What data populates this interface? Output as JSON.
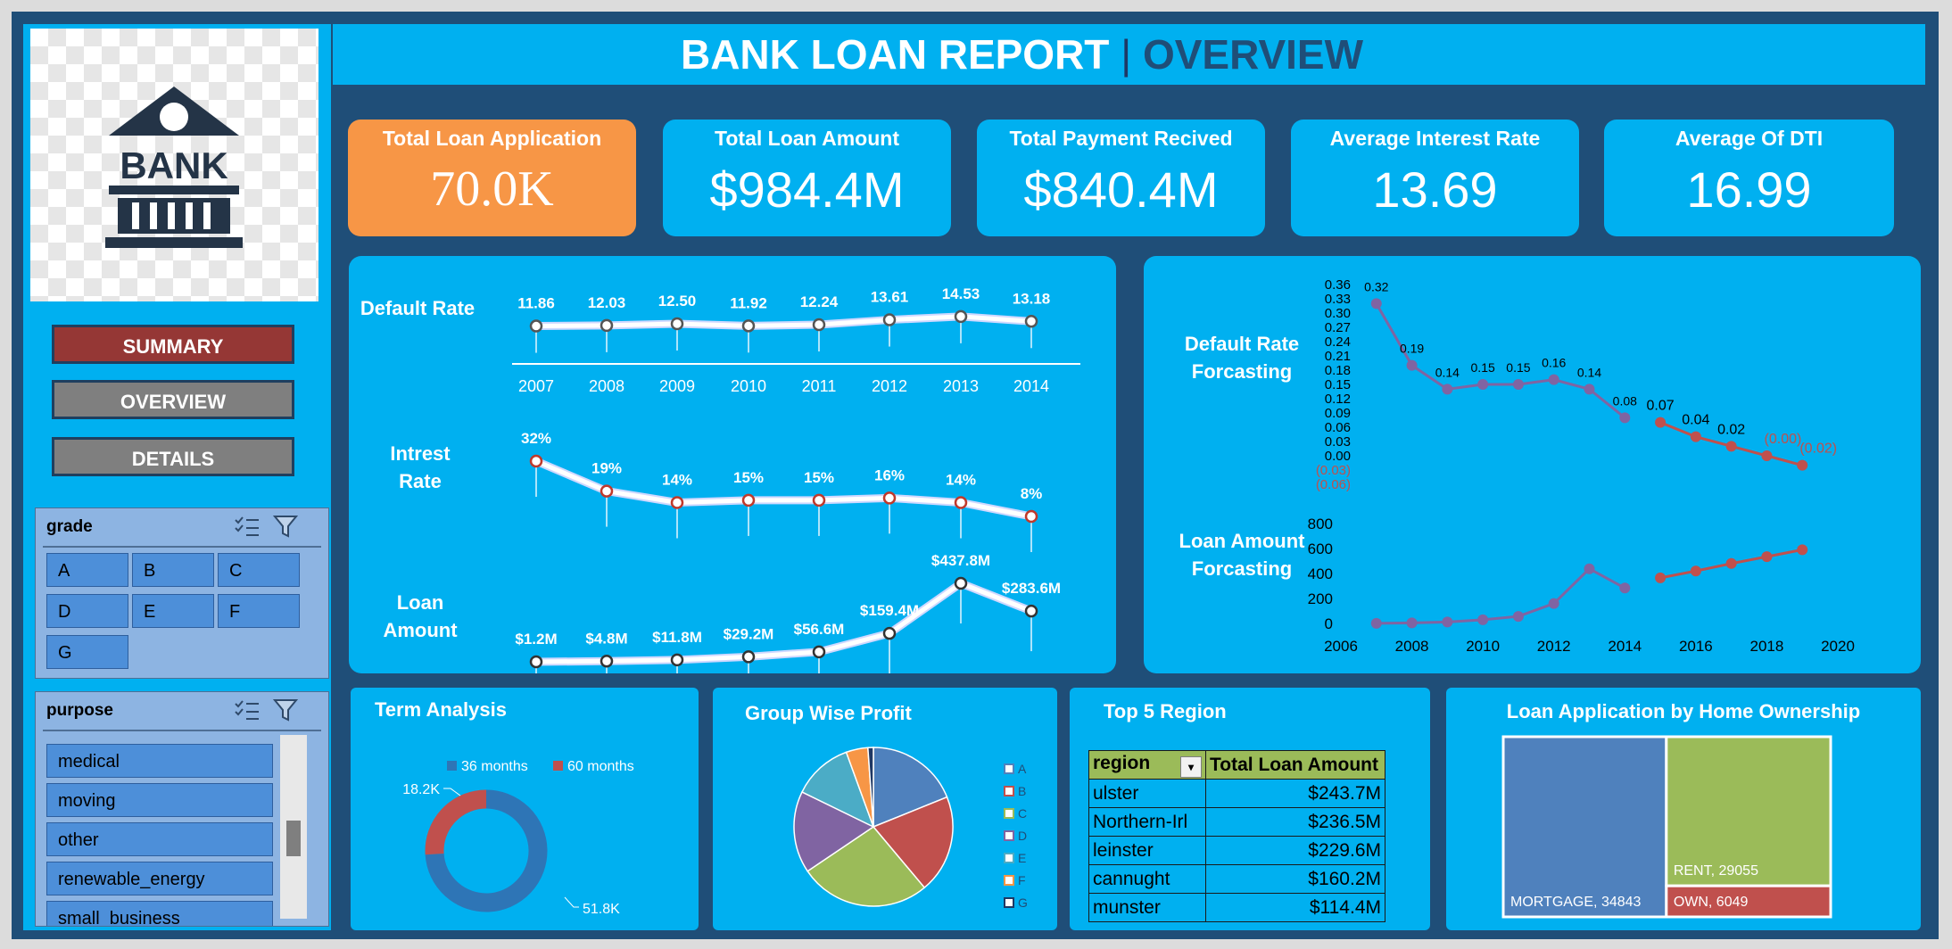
{
  "header": {
    "title_main": "BANK LOAN REPORT",
    "separator": "|",
    "title_sub": "OVERVIEW"
  },
  "logo": {
    "text": "BANK"
  },
  "nav": {
    "summary": "SUMMARY",
    "overview": "OVERVIEW",
    "details": "DETAILS"
  },
  "colors": {
    "background": "#1f4e78",
    "panel": "#00b0f0",
    "kpi_highlight": "#f79646",
    "summary_btn": "#953735",
    "nav_btn": "#7f7f7f",
    "title_sub": "#1f4e78",
    "forecast": "#c0504d",
    "history": "#8064a2"
  },
  "slicers": {
    "grade": {
      "title": "grade",
      "items": [
        "A",
        "B",
        "C",
        "D",
        "E",
        "F",
        "G"
      ]
    },
    "purpose": {
      "title": "purpose",
      "items": [
        "medical",
        "moving",
        "other",
        "renewable_energy",
        "small_business"
      ]
    }
  },
  "kpis": [
    {
      "title": "Total Loan Application",
      "value": "70.0K"
    },
    {
      "title": "Total Loan Amount",
      "value": "$984.4M"
    },
    {
      "title": "Total Payment Recived",
      "value": "$840.4M"
    },
    {
      "title": "Average Interest Rate",
      "value": "13.69"
    },
    {
      "title": "Average Of DTI",
      "value": "16.99"
    }
  ],
  "trend": {
    "labels": {
      "default_rate": "Default Rate",
      "interest_rate": "Intrest Rate",
      "loan_amount": "Loan Amount"
    }
  },
  "forecast_labels": {
    "default_rate": "Default Rate Forcasting",
    "loan_amount": "Loan Amount Forcasting"
  },
  "sections": {
    "term": "Term Analysis",
    "group": "Group Wise Profit",
    "region": "Top 5 Region",
    "home": "Loan Application by Home Ownership"
  },
  "region_table": {
    "headers": [
      "region",
      "Total Loan Amount"
    ],
    "rows": [
      [
        "ulster",
        "$243.7M"
      ],
      [
        "Northern-Irl",
        "$236.5M"
      ],
      [
        "leinster",
        "$229.6M"
      ],
      [
        "cannught",
        "$160.2M"
      ],
      [
        "munster",
        "$114.4M"
      ]
    ]
  },
  "chart_data": [
    {
      "type": "line",
      "title": "Default Rate",
      "x": [
        2007,
        2008,
        2009,
        2010,
        2011,
        2012,
        2013,
        2014
      ],
      "series": [
        {
          "values": [
            11.86,
            12.03,
            12.5,
            11.92,
            12.24,
            13.61,
            14.53,
            13.18
          ]
        }
      ],
      "data_labels": [
        "11.86",
        "12.03",
        "12.50",
        "11.92",
        "12.24",
        "13.61",
        "14.53",
        "13.18"
      ]
    },
    {
      "type": "line",
      "title": "Intrest Rate",
      "x": [
        2007,
        2008,
        2009,
        2010,
        2011,
        2012,
        2013,
        2014
      ],
      "series": [
        {
          "values": [
            32,
            19,
            14,
            15,
            15,
            16,
            14,
            8
          ]
        }
      ],
      "data_labels": [
        "32%",
        "19%",
        "14%",
        "15%",
        "15%",
        "16%",
        "14%",
        "8%"
      ]
    },
    {
      "type": "line",
      "title": "Loan Amount",
      "x": [
        2007,
        2008,
        2009,
        2010,
        2011,
        2012,
        2013,
        2014
      ],
      "series": [
        {
          "values": [
            1.2,
            4.8,
            11.8,
            29.2,
            56.6,
            159.4,
            437.8,
            283.6
          ]
        }
      ],
      "data_labels": [
        "$1.2M",
        "$4.8M",
        "$11.8M",
        "$29.2M",
        "$56.6M",
        "$159.4M",
        "$437.8M",
        "$283.6M"
      ]
    },
    {
      "type": "line",
      "title": "Default Rate Forcasting",
      "yticks": [
        "0.36",
        "0.33",
        "0.30",
        "0.27",
        "0.24",
        "0.21",
        "0.18",
        "0.15",
        "0.12",
        "0.09",
        "0.06",
        "0.03",
        "0.00",
        "(0.03)",
        "(0.06)"
      ],
      "ylim": [
        -0.06,
        0.36
      ],
      "series": [
        {
          "values": [
            [
              2007,
              0.32
            ],
            [
              2008,
              0.19
            ],
            [
              2009,
              0.14
            ],
            [
              2010,
              0.15
            ],
            [
              2011,
              0.15
            ],
            [
              2012,
              0.16
            ],
            [
              2013,
              0.14
            ],
            [
              2014,
              0.08
            ]
          ],
          "labels": [
            "0.32",
            "0.19",
            "0.14",
            "0.15",
            "0.15",
            "0.16",
            "0.14",
            "0.08"
          ]
        },
        {
          "values": [
            [
              2015,
              0.07
            ],
            [
              2016,
              0.04
            ],
            [
              2017,
              0.02
            ],
            [
              2018,
              -0.0
            ],
            [
              2019,
              -0.02
            ]
          ],
          "labels": [
            "0.07",
            "0.04",
            "0.02",
            "(0.00)",
            "(0.02)"
          ]
        }
      ]
    },
    {
      "type": "line",
      "title": "Loan Amount Forcasting",
      "xticks": [
        "2006",
        "2008",
        "2010",
        "2012",
        "2014",
        "2016",
        "2018",
        "2020"
      ],
      "xlim": [
        2006,
        2020
      ],
      "yticks": [
        "800",
        "600",
        "400",
        "200",
        "0"
      ],
      "ylim": [
        0,
        800
      ],
      "series": [
        {
          "values": [
            [
              2007,
              1.2
            ],
            [
              2008,
              4.8
            ],
            [
              2009,
              11.8
            ],
            [
              2010,
              29.2
            ],
            [
              2011,
              56.6
            ],
            [
              2012,
              159.4
            ],
            [
              2013,
              437.8
            ],
            [
              2014,
              283.6
            ]
          ]
        },
        {
          "values": [
            [
              2015,
              365
            ],
            [
              2016,
              420
            ],
            [
              2017,
              480
            ],
            [
              2018,
              535
            ],
            [
              2019,
              590
            ]
          ]
        }
      ]
    },
    {
      "type": "pie",
      "title": "Term Analysis",
      "categories": [
        "36 months",
        "60 months"
      ],
      "values": [
        51.8,
        18.2
      ],
      "data_labels": [
        "51.8K",
        "18.2K"
      ],
      "colors": [
        "#2e75b6",
        "#c0504d"
      ]
    },
    {
      "type": "pie",
      "title": "Group Wise Profit",
      "categories": [
        "A",
        "B",
        "C",
        "D",
        "E",
        "F",
        "G"
      ],
      "values": [
        17,
        18,
        24,
        15,
        11,
        4,
        1
      ],
      "colors": [
        "#4f81bd",
        "#c0504d",
        "#9bbb59",
        "#8064a2",
        "#4bacc6",
        "#f79646",
        "#1f3864"
      ]
    },
    {
      "type": "treemap",
      "title": "Loan Application by Home Ownership",
      "categories": [
        "MORTGAGE",
        "RENT",
        "OWN"
      ],
      "values": [
        34843,
        29055,
        6049
      ],
      "data_labels": [
        "MORTGAGE, 34843",
        "RENT, 29055",
        "OWN, 6049"
      ],
      "colors": [
        "#4f81bd",
        "#9bbb59",
        "#c0504d"
      ]
    }
  ]
}
